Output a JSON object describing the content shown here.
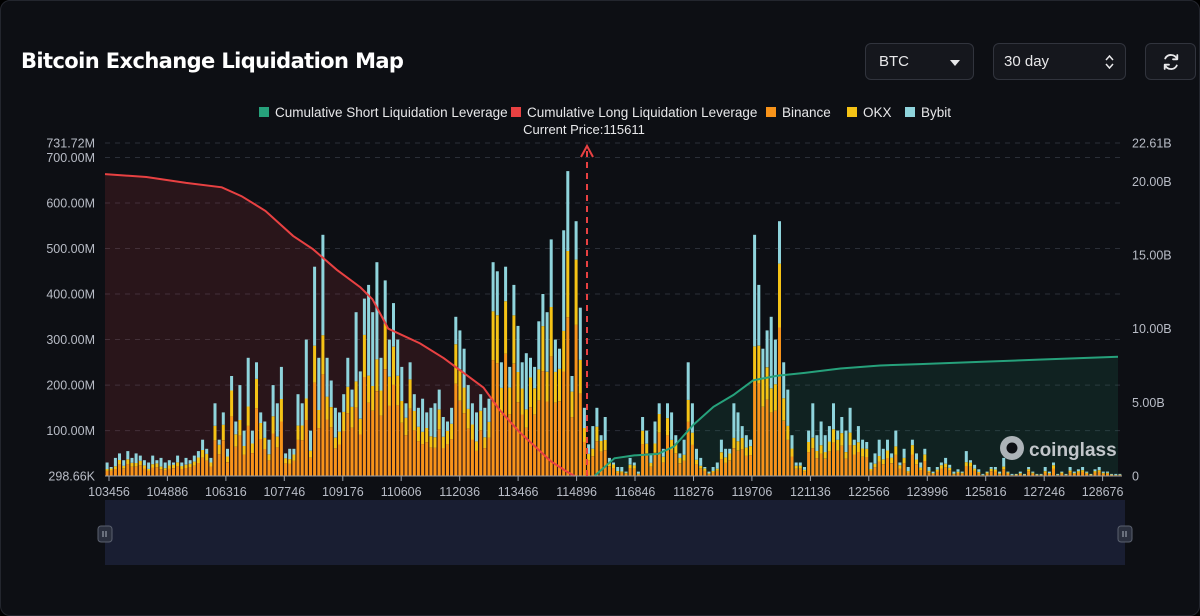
{
  "header": {
    "title": "Bitcoin Exchange Liquidation Map",
    "coin_select": "BTC",
    "range_select": "30 day"
  },
  "chart_data": {
    "type": "bar",
    "title": "Bitcoin Exchange Liquidation Map",
    "legend": [
      {
        "label": "Cumulative Short Liquidation Leverage",
        "color": "#26a17b"
      },
      {
        "label": "Cumulative Long Liquidation Leverage",
        "color": "#e84142"
      },
      {
        "label": "Binance",
        "color": "#f7931a"
      },
      {
        "label": "OKX",
        "color": "#f5c316"
      },
      {
        "label": "Bybit",
        "color": "#8fd4dc"
      }
    ],
    "legend_position": "top-center",
    "current_price_label": "Current Price:115611",
    "current_price": 115611,
    "x_tick_labels": [
      "103456",
      "104886",
      "106316",
      "107746",
      "109176",
      "110606",
      "112036",
      "113466",
      "114896",
      "116846",
      "118276",
      "119706",
      "121136",
      "122566",
      "123996",
      "125816",
      "127246",
      "128676"
    ],
    "x_range": [
      103456,
      129100
    ],
    "left_axis_labels": [
      "731.72M",
      "700.00M",
      "600.00M",
      "500.00M",
      "400.00M",
      "300.00M",
      "200.00M",
      "100.00M",
      "298.66K"
    ],
    "left_axis_range": [
      0.3,
      731.72
    ],
    "left_axis_unit": "M",
    "right_axis_labels": [
      "22.61B",
      "20.00B",
      "15.00B",
      "10.00B",
      "5.00B",
      "0"
    ],
    "right_axis_range": [
      0,
      22.61
    ],
    "right_axis_unit": "B",
    "grid": true,
    "series": [
      {
        "name": "Binance",
        "stack_order": 1
      },
      {
        "name": "OKX",
        "stack_order": 2
      },
      {
        "name": "Bybit",
        "stack_order": 3
      }
    ],
    "bar_totals": [
      30,
      20,
      40,
      50,
      35,
      55,
      40,
      50,
      45,
      35,
      30,
      45,
      35,
      40,
      30,
      35,
      30,
      45,
      30,
      40,
      35,
      45,
      55,
      80,
      60,
      40,
      160,
      80,
      140,
      60,
      220,
      120,
      200,
      100,
      260,
      100,
      250,
      140,
      120,
      80,
      200,
      160,
      240,
      50,
      60,
      60,
      180,
      160,
      300,
      100,
      460,
      260,
      530,
      260,
      210,
      150,
      140,
      180,
      260,
      190,
      360,
      230,
      390,
      420,
      360,
      470,
      260,
      430,
      300,
      380,
      300,
      240,
      160,
      250,
      180,
      150,
      170,
      140,
      150,
      160,
      190,
      130,
      120,
      150,
      350,
      320,
      280,
      200,
      160,
      140,
      180,
      150,
      170,
      470,
      450,
      250,
      460,
      240,
      420,
      330,
      250,
      270,
      260,
      240,
      340,
      400,
      360,
      520,
      300,
      280,
      540,
      670,
      220,
      560,
      370,
      150,
      70,
      110,
      150,
      90,
      130,
      40,
      30,
      20,
      20,
      10,
      40,
      30,
      10,
      130,
      100,
      50,
      120,
      160,
      60,
      160,
      140,
      90,
      50,
      80,
      250,
      160,
      60,
      40,
      20,
      10,
      20,
      30,
      80,
      60,
      60,
      160,
      140,
      110,
      90,
      80,
      530,
      420,
      280,
      320,
      350,
      300,
      560,
      250,
      190,
      90,
      30,
      30,
      20,
      100,
      160,
      90,
      120,
      90,
      110,
      160,
      100,
      130,
      100,
      150,
      80,
      110,
      80,
      75,
      30,
      50,
      80,
      60,
      80,
      50,
      100,
      30,
      60,
      20,
      80,
      50,
      30,
      60,
      20,
      10,
      20,
      30,
      40,
      25,
      10,
      15,
      10,
      55,
      35,
      25,
      15,
      5,
      10,
      20,
      20,
      10,
      40,
      10,
      5,
      5,
      10,
      5,
      20,
      10,
      5,
      5,
      20,
      10,
      30,
      5,
      10,
      5,
      20,
      10,
      15,
      20,
      10,
      5,
      15,
      20,
      10,
      10,
      5,
      5,
      5
    ],
    "cumulative_long": [
      [
        103456,
        20.5
      ],
      [
        104500,
        20.3
      ],
      [
        105500,
        19.9
      ],
      [
        106400,
        19.6
      ],
      [
        106900,
        19.0
      ],
      [
        107500,
        18.0
      ],
      [
        108200,
        16.3
      ],
      [
        108700,
        15.4
      ],
      [
        109300,
        14.0
      ],
      [
        109900,
        12.8
      ],
      [
        110200,
        12.0
      ],
      [
        110600,
        10.0
      ],
      [
        111400,
        9.0
      ],
      [
        112000,
        8.0
      ],
      [
        112500,
        7.0
      ],
      [
        113000,
        6.0
      ],
      [
        113400,
        4.5
      ],
      [
        113900,
        3.0
      ],
      [
        114300,
        2.0
      ],
      [
        114700,
        1.0
      ],
      [
        115100,
        0.3
      ],
      [
        115300,
        0.0
      ]
    ],
    "cumulative_short": [
      [
        115800,
        0.0
      ],
      [
        116300,
        1.2
      ],
      [
        116800,
        1.4
      ],
      [
        117400,
        1.5
      ],
      [
        117800,
        2.0
      ],
      [
        118300,
        3.5
      ],
      [
        118800,
        4.7
      ],
      [
        119300,
        5.5
      ],
      [
        119800,
        6.5
      ],
      [
        120400,
        6.8
      ],
      [
        121100,
        7.0
      ],
      [
        122000,
        7.3
      ],
      [
        123000,
        7.5
      ],
      [
        124000,
        7.6
      ],
      [
        125500,
        7.75
      ],
      [
        127000,
        7.9
      ],
      [
        129000,
        8.1
      ]
    ]
  },
  "watermark": "coinglass"
}
